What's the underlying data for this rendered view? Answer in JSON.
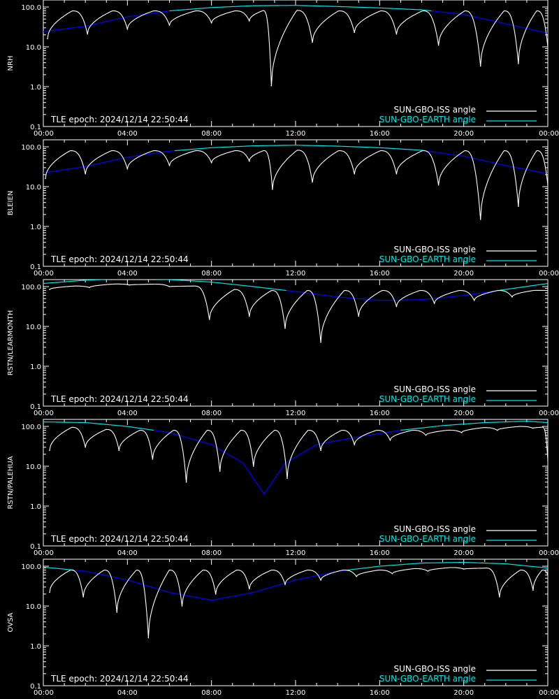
{
  "chart_data": [
    {
      "type": "line",
      "ylabel": "NRH",
      "epoch_label": "TLE epoch: 2024/12/14 22:50:44",
      "series": [
        {
          "name": "SUN-GBO-ISS angle",
          "color": "#ffffff",
          "style": "sawtooth-dips",
          "dips": [
            [
              0.2,
              16
            ],
            [
              2.1,
              21
            ],
            [
              4.0,
              28
            ],
            [
              6.0,
              35
            ],
            [
              8.0,
              40
            ],
            [
              9.8,
              45
            ],
            [
              10.85,
              1.05
            ],
            [
              12.8,
              13
            ],
            [
              14.8,
              23
            ],
            [
              16.8,
              21
            ],
            [
              18.8,
              11
            ],
            [
              20.8,
              3.3
            ],
            [
              22.6,
              3.8
            ],
            [
              24.0,
              10
            ]
          ]
        },
        {
          "name": "SUN-GBO-EARTH angle",
          "color": "#00e5e5",
          "low_color": "#0000ff",
          "points": [
            [
              0,
              24
            ],
            [
              2,
              33
            ],
            [
              4,
              57
            ],
            [
              6,
              80
            ],
            [
              8,
              97
            ],
            [
              10,
              108
            ],
            [
              12,
              110
            ],
            [
              14,
              103
            ],
            [
              16,
              95
            ],
            [
              18,
              85
            ],
            [
              20,
              65
            ],
            [
              22,
              38
            ],
            [
              24,
              22
            ]
          ]
        }
      ],
      "xticks": [
        "00:00",
        "04:00",
        "08:00",
        "12:00",
        "16:00",
        "20:00",
        "00:00"
      ],
      "yticks": [
        "100.0",
        "10.0",
        "1.0",
        "0.1"
      ],
      "xlim": [
        0,
        24
      ],
      "ylim": [
        0.1,
        150
      ],
      "yscale": "log",
      "legend_position": "bottom-right"
    },
    {
      "type": "line",
      "ylabel": "BLEIEN",
      "epoch_label": "TLE epoch: 2024/12/14 22:50:44",
      "series": [
        {
          "name": "SUN-GBO-ISS angle",
          "color": "#ffffff",
          "style": "sawtooth-dips",
          "dips": [
            [
              0.1,
              16
            ],
            [
              2.0,
              21
            ],
            [
              4.0,
              28
            ],
            [
              6.0,
              34
            ],
            [
              8.0,
              40
            ],
            [
              9.8,
              44
            ],
            [
              10.9,
              8.5
            ],
            [
              12.8,
              13
            ],
            [
              14.8,
              21
            ],
            [
              16.8,
              21
            ],
            [
              18.8,
              11
            ],
            [
              20.8,
              1.5
            ],
            [
              22.6,
              3.2
            ],
            [
              24.0,
              11
            ]
          ]
        },
        {
          "name": "SUN-GBO-EARTH angle",
          "color": "#00e5e5",
          "low_color": "#0000ff",
          "points": [
            [
              0,
              22
            ],
            [
              2,
              32
            ],
            [
              4,
              55
            ],
            [
              6,
              78
            ],
            [
              8,
              95
            ],
            [
              10,
              106
            ],
            [
              12,
              110
            ],
            [
              14,
              104
            ],
            [
              16,
              95
            ],
            [
              18,
              82
            ],
            [
              20,
              58
            ],
            [
              22,
              34
            ],
            [
              24,
              21
            ]
          ]
        }
      ],
      "xticks": [
        "00:00",
        "04:00",
        "08:00",
        "12:00",
        "16:00",
        "20:00",
        "00:00"
      ],
      "yticks": [
        "100.0",
        "10.0",
        "1.0",
        "0.1"
      ],
      "xlim": [
        0,
        24
      ],
      "ylim": [
        0.1,
        150
      ],
      "yscale": "log",
      "legend_position": "bottom-right"
    },
    {
      "type": "line",
      "ylabel": "RSTN/LEARMONTH",
      "epoch_label": "TLE epoch: 2024/12/14 22:50:44",
      "series": [
        {
          "name": "SUN-GBO-ISS angle",
          "color": "#ffffff",
          "style": "sawtooth-dips",
          "dips": [
            [
              0.3,
              85
            ],
            [
              2.2,
              95
            ],
            [
              4.1,
              110
            ],
            [
              6.0,
              100
            ],
            [
              7.9,
              15
            ],
            [
              9.8,
              18
            ],
            [
              11.5,
              9
            ],
            [
              13.2,
              4
            ],
            [
              15.0,
              18
            ],
            [
              16.8,
              32
            ],
            [
              18.6,
              38
            ],
            [
              20.5,
              45
            ],
            [
              22.3,
              55
            ],
            [
              24.0,
              80
            ]
          ]
        },
        {
          "name": "SUN-GBO-EARTH angle",
          "color": "#00e5e5",
          "low_color": "#0000ff",
          "points": [
            [
              0,
              120
            ],
            [
              2,
              145
            ],
            [
              4,
              160
            ],
            [
              6,
              150
            ],
            [
              8,
              130
            ],
            [
              10,
              100
            ],
            [
              12,
              75
            ],
            [
              14,
              55
            ],
            [
              16,
              45
            ],
            [
              18,
              47
            ],
            [
              20,
              60
            ],
            [
              22,
              85
            ],
            [
              24,
              120
            ]
          ]
        }
      ],
      "xticks": [
        "00:00",
        "04:00",
        "08:00",
        "12:00",
        "16:00",
        "20:00",
        "00:00"
      ],
      "yticks": [
        "100.0",
        "10.0",
        "1.0",
        "0.1"
      ],
      "xlim": [
        0,
        24
      ],
      "ylim": [
        0.1,
        150
      ],
      "yscale": "log",
      "legend_position": "bottom-right"
    },
    {
      "type": "line",
      "ylabel": "RSTN/PALEHUA",
      "epoch_label": "TLE epoch: 2024/12/14 22:50:44",
      "series": [
        {
          "name": "SUN-GBO-ISS angle",
          "color": "#ffffff",
          "style": "sawtooth-dips",
          "dips": [
            [
              0.3,
              25
            ],
            [
              2.0,
              30
            ],
            [
              3.6,
              25
            ],
            [
              5.2,
              15
            ],
            [
              6.8,
              4
            ],
            [
              8.4,
              7.5
            ],
            [
              10.0,
              10
            ],
            [
              11.6,
              5
            ],
            [
              13.2,
              25
            ],
            [
              14.8,
              35
            ],
            [
              16.5,
              45
            ],
            [
              18.2,
              60
            ],
            [
              19.9,
              70
            ],
            [
              21.6,
              80
            ],
            [
              23.3,
              90
            ],
            [
              24.0,
              14
            ]
          ]
        },
        {
          "name": "SUN-GBO-EARTH angle",
          "color": "#00e5e5",
          "low_color": "#0000ff",
          "points": [
            [
              0,
              130
            ],
            [
              2,
              125
            ],
            [
              4,
              100
            ],
            [
              6,
              70
            ],
            [
              8,
              35
            ],
            [
              9.5,
              12
            ],
            [
              10.5,
              2.0
            ],
            [
              11.5,
              12
            ],
            [
              13,
              35
            ],
            [
              15,
              55
            ],
            [
              17,
              80
            ],
            [
              19,
              105
            ],
            [
              21,
              125
            ],
            [
              23,
              135
            ],
            [
              24,
              125
            ]
          ]
        }
      ],
      "xticks": [
        "00:00",
        "04:00",
        "08:00",
        "12:00",
        "16:00",
        "20:00",
        "00:00"
      ],
      "yticks": [
        "100.0",
        "10.0",
        "1.0",
        "0.1"
      ],
      "xlim": [
        0,
        24
      ],
      "ylim": [
        0.1,
        150
      ],
      "yscale": "log",
      "legend_position": "bottom-right"
    },
    {
      "type": "line",
      "ylabel": "OVSA",
      "epoch_label": "TLE epoch: 2024/12/14 22:50:44",
      "series": [
        {
          "name": "SUN-GBO-ISS angle",
          "color": "#ffffff",
          "style": "sawtooth-dips",
          "dips": [
            [
              0.3,
              22
            ],
            [
              1.9,
              17
            ],
            [
              3.5,
              7
            ],
            [
              5.0,
              1.6
            ],
            [
              6.6,
              10
            ],
            [
              8.2,
              20
            ],
            [
              9.8,
              27
            ],
            [
              11.5,
              35
            ],
            [
              13.2,
              45
            ],
            [
              14.9,
              55
            ],
            [
              16.6,
              65
            ],
            [
              18.3,
              75
            ],
            [
              20.0,
              85
            ],
            [
              21.7,
              17
            ],
            [
              23.3,
              25
            ],
            [
              24.0,
              60
            ]
          ]
        },
        {
          "name": "SUN-GBO-EARTH angle",
          "color": "#00e5e5",
          "low_color": "#0000ff",
          "points": [
            [
              0,
              95
            ],
            [
              2,
              75
            ],
            [
              4,
              45
            ],
            [
              6,
              22
            ],
            [
              8,
              14
            ],
            [
              10,
              22
            ],
            [
              12,
              45
            ],
            [
              14,
              75
            ],
            [
              16,
              100
            ],
            [
              18,
              120
            ],
            [
              20,
              125
            ],
            [
              22,
              115
            ],
            [
              24,
              90
            ]
          ]
        }
      ],
      "xticks": [
        "00:00",
        "04:00",
        "08:00",
        "12:00",
        "16:00",
        "20:00",
        "00:00"
      ],
      "yticks": [
        "100.0",
        "10.0",
        "1.0",
        "0.1"
      ],
      "xlim": [
        0,
        24
      ],
      "ylim": [
        0.1,
        150
      ],
      "yscale": "log",
      "legend_position": "bottom-right"
    }
  ]
}
